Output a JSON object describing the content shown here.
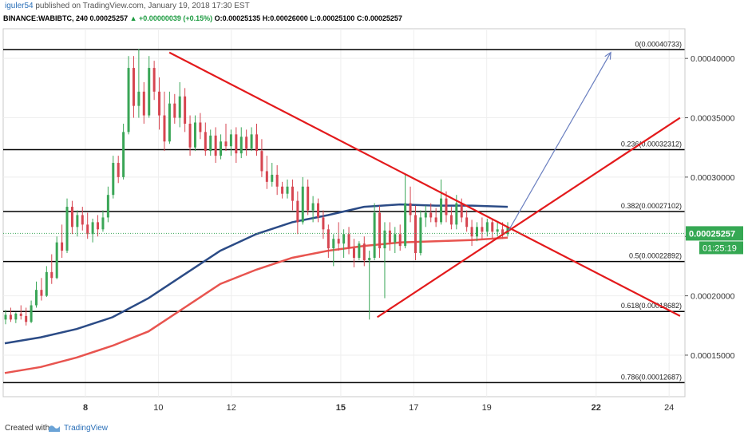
{
  "header": {
    "publisher": "iguler54",
    "published_text": "published on TradingView.com, January 19, 2018 17:30 EST",
    "symbol": "BINANCE:WABIBTC, 240",
    "last": "0.00025257",
    "change": "+0.00000039 (+0.15%)",
    "ohlc_o": "O:0.00025135",
    "ohlc_h": "H:0.00026000",
    "ohlc_l": "L:0.00025100",
    "ohlc_c": "C:0.00025257"
  },
  "price_badge": "0.00025257",
  "countdown_badge": "01:25:19",
  "footer": {
    "created": "Created with",
    "brand": "TradingView"
  },
  "colors": {
    "up": "#3aa657",
    "down": "#d64550",
    "ema_fast": "#2b4b86",
    "ema_slow": "#e8544f",
    "trend": "#e31a1c",
    "arrow": "#6a7fc0",
    "badge_green": "#35a853"
  },
  "chart_data": {
    "type": "candlestick",
    "y_ticks": [
      "0.00040000",
      "0.00035000",
      "0.00030000",
      "0.00025000",
      "0.00020000",
      "0.00015000"
    ],
    "x_ticks": [
      {
        "label": "8",
        "day": 8,
        "bold": true
      },
      {
        "label": "10",
        "day": 10,
        "bold": false
      },
      {
        "label": "12",
        "day": 12,
        "bold": false
      },
      {
        "label": "15",
        "day": 15,
        "bold": true
      },
      {
        "label": "17",
        "day": 17,
        "bold": false
      },
      {
        "label": "19",
        "day": 19,
        "bold": false
      },
      {
        "label": "22",
        "day": 22,
        "bold": true
      },
      {
        "label": "24",
        "day": 24,
        "bold": false
      }
    ],
    "ylim": [
      0.000115,
      0.000425
    ],
    "fib_levels": [
      {
        "label": "0(0.00040733)",
        "value": 0.00040733
      },
      {
        "label": "0.236(0.00032312)",
        "value": 0.00032312
      },
      {
        "label": "0.382(0.00027102)",
        "value": 0.00027102
      },
      {
        "label": "0.5(0.00022892)",
        "value": 0.00022892
      },
      {
        "label": "0.618(0.00018682)",
        "value": 0.00018682
      },
      {
        "label": "0.786(0.00012687)",
        "value": 0.00012687
      }
    ],
    "candles": [
      [
        0.00018,
        0.000188,
        0.000176,
        0.000184
      ],
      [
        0.000184,
        0.00019,
        0.000178,
        0.00018
      ],
      [
        0.00018,
        0.000186,
        0.000177,
        0.000185
      ],
      [
        0.000185,
        0.000192,
        0.00018,
        0.000183
      ],
      [
        0.000183,
        0.00019,
        0.000175,
        0.000178
      ],
      [
        0.000178,
        0.000196,
        0.000177,
        0.000192
      ],
      [
        0.000192,
        0.000212,
        0.00019,
        0.000205
      ],
      [
        0.000205,
        0.000215,
        0.000196,
        0.0002
      ],
      [
        0.0002,
        0.000225,
        0.000199,
        0.00022
      ],
      [
        0.00022,
        0.000235,
        0.00021,
        0.000215
      ],
      [
        0.000215,
        0.00025,
        0.000214,
        0.000245
      ],
      [
        0.000245,
        0.00026,
        0.000232,
        0.000238
      ],
      [
        0.000238,
        0.000282,
        0.000236,
        0.000275
      ],
      [
        0.000275,
        0.00028,
        0.000252,
        0.000258
      ],
      [
        0.000258,
        0.000272,
        0.00025,
        0.000268
      ],
      [
        0.000268,
        0.000275,
        0.000255,
        0.00026
      ],
      [
        0.00026,
        0.00027,
        0.000248,
        0.000252
      ],
      [
        0.000252,
        0.000265,
        0.000245,
        0.000262
      ],
      [
        0.000262,
        0.000268,
        0.00025,
        0.000256
      ],
      [
        0.000256,
        0.000272,
        0.000254,
        0.000266
      ],
      [
        0.000266,
        0.000292,
        0.000262,
        0.000285
      ],
      [
        0.000285,
        0.000318,
        0.000282,
        0.000312
      ],
      [
        0.000312,
        0.000318,
        0.000295,
        0.0003
      ],
      [
        0.0003,
        0.000345,
        0.000298,
        0.000338
      ],
      [
        0.000338,
        0.000402,
        0.000336,
        0.000392
      ],
      [
        0.000392,
        0.000402,
        0.00035,
        0.00036
      ],
      [
        0.00036,
        0.000408,
        0.00035,
        0.000372
      ],
      [
        0.000372,
        0.00038,
        0.000345,
        0.000352
      ],
      [
        0.000352,
        0.000402,
        0.00035,
        0.000392
      ],
      [
        0.000392,
        0.000398,
        0.000365,
        0.000372
      ],
      [
        0.000372,
        0.000384,
        0.00034,
        0.000352
      ],
      [
        0.000352,
        0.000372,
        0.000322,
        0.00033
      ],
      [
        0.00033,
        0.000372,
        0.000328,
        0.000362
      ],
      [
        0.000362,
        0.00037,
        0.000345,
        0.00035
      ],
      [
        0.00035,
        0.00038,
        0.000342,
        0.000368
      ],
      [
        0.000368,
        0.000375,
        0.000338,
        0.000345
      ],
      [
        0.000345,
        0.000352,
        0.000318,
        0.000325
      ],
      [
        0.000325,
        0.000352,
        0.000322,
        0.000346
      ],
      [
        0.000346,
        0.000354,
        0.000332,
        0.000338
      ],
      [
        0.000338,
        0.000346,
        0.000318,
        0.000322
      ],
      [
        0.000322,
        0.00034,
        0.000318,
        0.000335
      ],
      [
        0.000335,
        0.000342,
        0.000312,
        0.000318
      ],
      [
        0.000318,
        0.000336,
        0.000315,
        0.00033
      ],
      [
        0.00033,
        0.000345,
        0.000322,
        0.000326
      ],
      [
        0.000326,
        0.00034,
        0.000318,
        0.000336
      ],
      [
        0.000336,
        0.000342,
        0.000312,
        0.00032
      ],
      [
        0.00032,
        0.000342,
        0.000316,
        0.000334
      ],
      [
        0.000334,
        0.00034,
        0.000318,
        0.000324
      ],
      [
        0.000324,
        0.000342,
        0.000322,
        0.000336
      ],
      [
        0.000336,
        0.000345,
        0.000318,
        0.000322
      ],
      [
        0.000322,
        0.000332,
        0.0003,
        0.000305
      ],
      [
        0.000305,
        0.000318,
        0.00029,
        0.000296
      ],
      [
        0.000296,
        0.000312,
        0.000292,
        0.000302
      ],
      [
        0.000302,
        0.00031,
        0.000285,
        0.000292
      ],
      [
        0.000292,
        0.000296,
        0.000282,
        0.000286
      ],
      [
        0.000286,
        0.000298,
        0.000282,
        0.000292
      ],
      [
        0.000292,
        0.000298,
        0.000272,
        0.00028
      ],
      [
        0.00028,
        0.000288,
        0.000252,
        0.000262
      ],
      [
        0.000262,
        0.0003,
        0.00026,
        0.000292
      ],
      [
        0.000292,
        0.000298,
        0.000268,
        0.000272
      ],
      [
        0.000272,
        0.000284,
        0.000262,
        0.000278
      ],
      [
        0.000278,
        0.000282,
        0.000262,
        0.000266
      ],
      [
        0.000266,
        0.000272,
        0.000248,
        0.000256
      ],
      [
        0.000256,
        0.00026,
        0.000232,
        0.00024
      ],
      [
        0.00024,
        0.000252,
        0.000225,
        0.000248
      ],
      [
        0.000248,
        0.000262,
        0.000238,
        0.000244
      ],
      [
        0.000244,
        0.000256,
        0.000232,
        0.000252
      ],
      [
        0.000252,
        0.000258,
        0.000235,
        0.00024
      ],
      [
        0.00024,
        0.000248,
        0.000224,
        0.000232
      ],
      [
        0.000232,
        0.000246,
        0.00023,
        0.000244
      ],
      [
        0.000244,
        0.00025,
        0.000225,
        0.00023
      ],
      [
        0.00023,
        0.000238,
        0.00018,
        0.000232
      ],
      [
        0.000232,
        0.000278,
        0.00023,
        0.00027
      ],
      [
        0.00027,
        0.000276,
        0.000232,
        0.00024
      ],
      [
        0.00024,
        0.000262,
        0.000198,
        0.000255
      ],
      [
        0.000255,
        0.000262,
        0.000238,
        0.000245
      ],
      [
        0.000245,
        0.000258,
        0.000236,
        0.000252
      ],
      [
        0.000252,
        0.00026,
        0.000238,
        0.000242
      ],
      [
        0.000242,
        0.000302,
        0.00024,
        0.000278
      ],
      [
        0.000278,
        0.000292,
        0.000262,
        0.000268
      ],
      [
        0.000268,
        0.000276,
        0.00023,
        0.000236
      ],
      [
        0.000236,
        0.000272,
        0.000234,
        0.000266
      ],
      [
        0.000266,
        0.000276,
        0.000258,
        0.00027
      ],
      [
        0.00027,
        0.000278,
        0.000262,
        0.000266
      ],
      [
        0.000266,
        0.000274,
        0.000258,
        0.000262
      ],
      [
        0.000262,
        0.000298,
        0.00026,
        0.000282
      ],
      [
        0.000282,
        0.000288,
        0.000262,
        0.000268
      ],
      [
        0.000268,
        0.000275,
        0.000256,
        0.00026
      ],
      [
        0.00026,
        0.000285,
        0.000256,
        0.000278
      ],
      [
        0.000278,
        0.000282,
        0.000262,
        0.000266
      ],
      [
        0.000266,
        0.000272,
        0.000254,
        0.000258
      ],
      [
        0.000258,
        0.000264,
        0.000242,
        0.00025
      ],
      [
        0.00025,
        0.000262,
        0.000246,
        0.000258
      ],
      [
        0.000258,
        0.000266,
        0.000248,
        0.000254
      ],
      [
        0.000254,
        0.000265,
        0.00025,
        0.000262
      ],
      [
        0.000262,
        0.000265,
        0.000248,
        0.000254
      ],
      [
        0.000254,
        0.000262,
        0.00025,
        0.000256
      ],
      [
        0.000256,
        0.000262,
        0.000248,
        0.000252
      ],
      [
        0.000252,
        0.000262,
        0.00025,
        0.000258
      ]
    ],
    "ema_fast": [
      0.00016,
      0.000165,
      0.000172,
      0.000182,
      0.000198,
      0.000218,
      0.000238,
      0.000252,
      0.000262,
      0.000268,
      0.000275,
      0.000277,
      0.000276,
      0.000276,
      0.000275
    ],
    "ema_slow": [
      0.000135,
      0.00014,
      0.000148,
      0.000158,
      0.00017,
      0.00019,
      0.00021,
      0.000222,
      0.000232,
      0.000238,
      0.000242,
      0.000245,
      0.000246,
      0.000247,
      0.000249
    ],
    "trendlines": [
      {
        "p1": [
          10.3,
          0.000405
        ],
        "p2": [
          24.3,
          0.000183
        ]
      },
      {
        "p1": [
          16.0,
          0.000182
        ],
        "p2": [
          24.3,
          0.00035
        ]
      }
    ],
    "arrow": {
      "from": [
        19.6,
        0.000255
      ],
      "to": [
        22.4,
        0.000405
      ]
    }
  }
}
